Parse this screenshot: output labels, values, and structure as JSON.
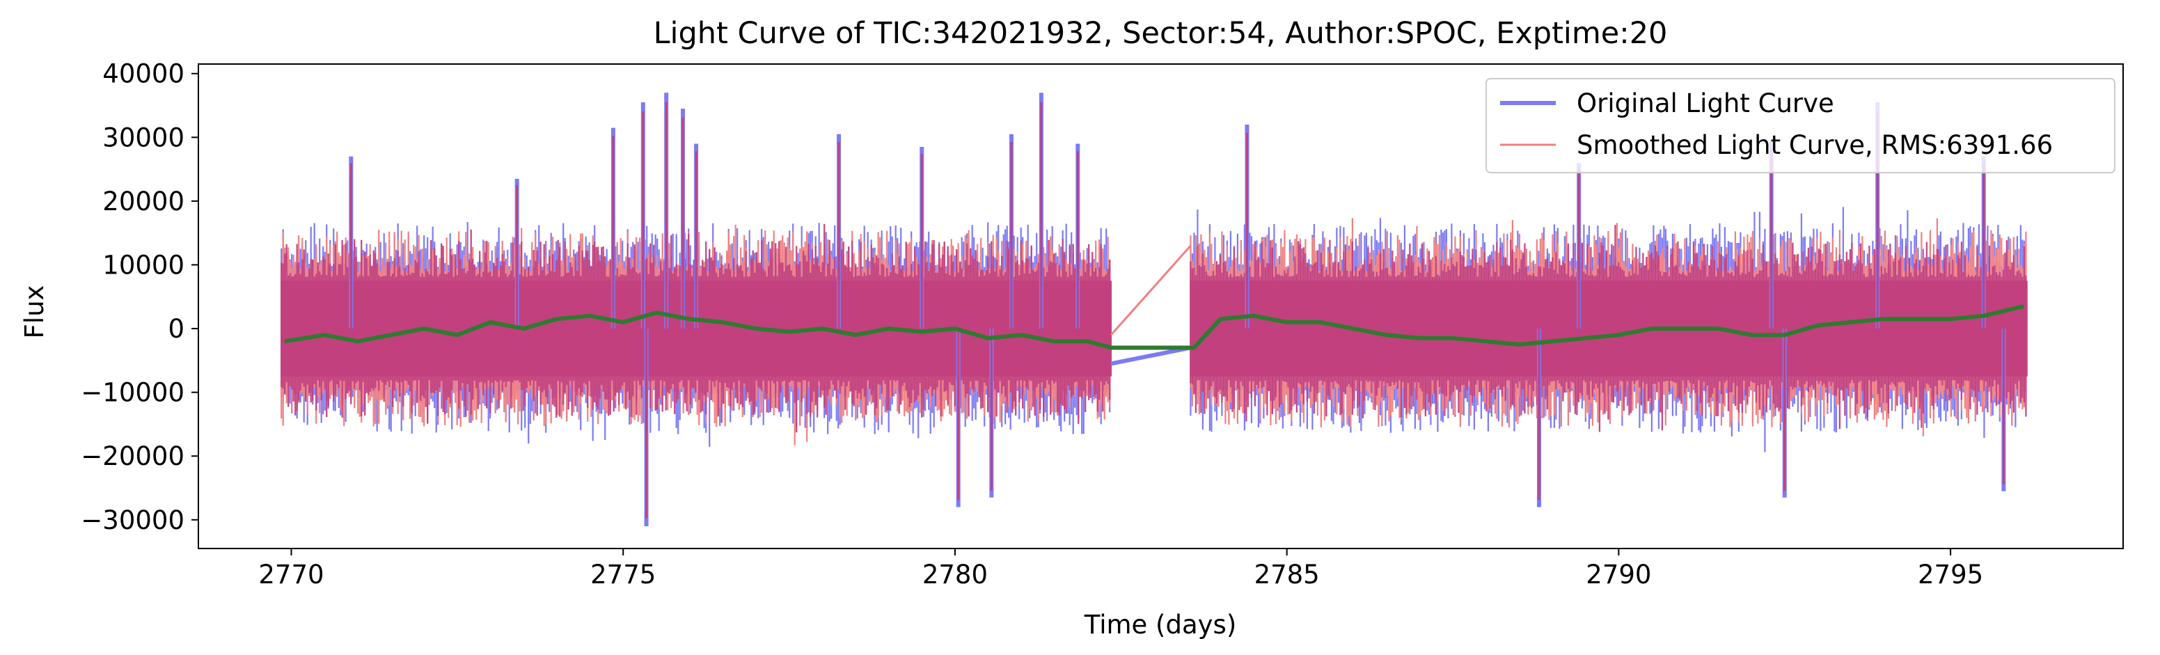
{
  "chart_data": {
    "type": "line",
    "title": "Light Curve of TIC:342021932, Sector:54, Author:SPOC, Exptime:20",
    "xlabel": "Time (days)",
    "ylabel": "Flux",
    "xlim": [
      2768.6,
      2797.6
    ],
    "ylim": [
      -34500,
      41500
    ],
    "xticks": [
      2770,
      2775,
      2780,
      2785,
      2790,
      2795
    ],
    "xtick_labels": [
      "2770",
      "2775",
      "2780",
      "2785",
      "2790",
      "2795"
    ],
    "yticks": [
      -30000,
      -20000,
      -10000,
      0,
      10000,
      20000,
      30000,
      40000
    ],
    "ytick_labels": [
      "−30000",
      "−20000",
      "−10000",
      "0",
      "10000",
      "20000",
      "30000",
      "40000"
    ],
    "grid": false,
    "legend_position": "upper right",
    "colors": {
      "original": "#7b7bf5",
      "smoothed": "#f08080",
      "overlap": "#c2407e",
      "trend": "#2f7a2f"
    },
    "data_segments": [
      {
        "start": 2769.85,
        "end": 2782.35
      },
      {
        "start": 2783.55,
        "end": 2796.15
      }
    ],
    "gap_connector": {
      "x": [
        2782.35,
        2783.55
      ],
      "y": [
        -5500,
        -3000
      ]
    },
    "series": [
      {
        "name": "Original Light Curve",
        "color": "#7b7bf5",
        "envelope_typical": [
          -17000,
          17000
        ],
        "spikes": [
          {
            "x": 2770.9,
            "y": 27000
          },
          {
            "x": 2773.4,
            "y": 23500
          },
          {
            "x": 2774.85,
            "y": 31500
          },
          {
            "x": 2775.3,
            "y": 35500
          },
          {
            "x": 2775.65,
            "y": 37000
          },
          {
            "x": 2775.9,
            "y": 34500
          },
          {
            "x": 2776.1,
            "y": 29000
          },
          {
            "x": 2778.25,
            "y": 30500
          },
          {
            "x": 2779.5,
            "y": 28500
          },
          {
            "x": 2780.85,
            "y": 30500
          },
          {
            "x": 2781.3,
            "y": 37000
          },
          {
            "x": 2781.85,
            "y": 29000
          },
          {
            "x": 2784.4,
            "y": 32000
          },
          {
            "x": 2789.4,
            "y": 26000
          },
          {
            "x": 2792.3,
            "y": 29500
          },
          {
            "x": 2793.9,
            "y": 35500
          },
          {
            "x": 2795.5,
            "y": 27000
          },
          {
            "x": 2775.35,
            "y": -31000
          },
          {
            "x": 2780.05,
            "y": -28000
          },
          {
            "x": 2780.55,
            "y": -26500
          },
          {
            "x": 2788.8,
            "y": -28000
          },
          {
            "x": 2792.5,
            "y": -26500
          },
          {
            "x": 2795.8,
            "y": -25500
          }
        ]
      },
      {
        "name": "Smoothed Light Curve, RMS:6391.66",
        "color": "#f08080"
      },
      {
        "name": "trend",
        "color": "#2f7a2f",
        "x": [
          2769.9,
          2770.5,
          2771.0,
          2771.5,
          2772.0,
          2772.5,
          2773.0,
          2773.5,
          2774.0,
          2774.5,
          2775.0,
          2775.5,
          2776.0,
          2776.5,
          2777.0,
          2777.5,
          2778.0,
          2778.5,
          2779.0,
          2779.5,
          2780.0,
          2780.5,
          2781.0,
          2781.5,
          2782.0,
          2782.35,
          2783.6,
          2784.0,
          2784.5,
          2785.0,
          2785.5,
          2786.0,
          2786.5,
          2787.0,
          2787.5,
          2788.0,
          2788.5,
          2789.0,
          2789.5,
          2790.0,
          2790.5,
          2791.0,
          2791.5,
          2792.0,
          2792.5,
          2793.0,
          2793.5,
          2794.0,
          2794.5,
          2795.0,
          2795.5,
          2796.1
        ],
        "y": [
          -2000,
          -1000,
          -2000,
          -1000,
          0,
          -1000,
          1000,
          0,
          1500,
          2000,
          1000,
          2500,
          1500,
          1000,
          0,
          -500,
          0,
          -1000,
          0,
          -500,
          0,
          -1500,
          -1000,
          -2000,
          -2000,
          -3000,
          -3000,
          1500,
          2000,
          1000,
          1000,
          0,
          -1000,
          -1500,
          -1500,
          -2000,
          -2500,
          -2000,
          -1500,
          -1000,
          0,
          0,
          0,
          -1000,
          -1000,
          500,
          1000,
          1500,
          1500,
          1500,
          2000,
          3500
        ]
      }
    ]
  }
}
